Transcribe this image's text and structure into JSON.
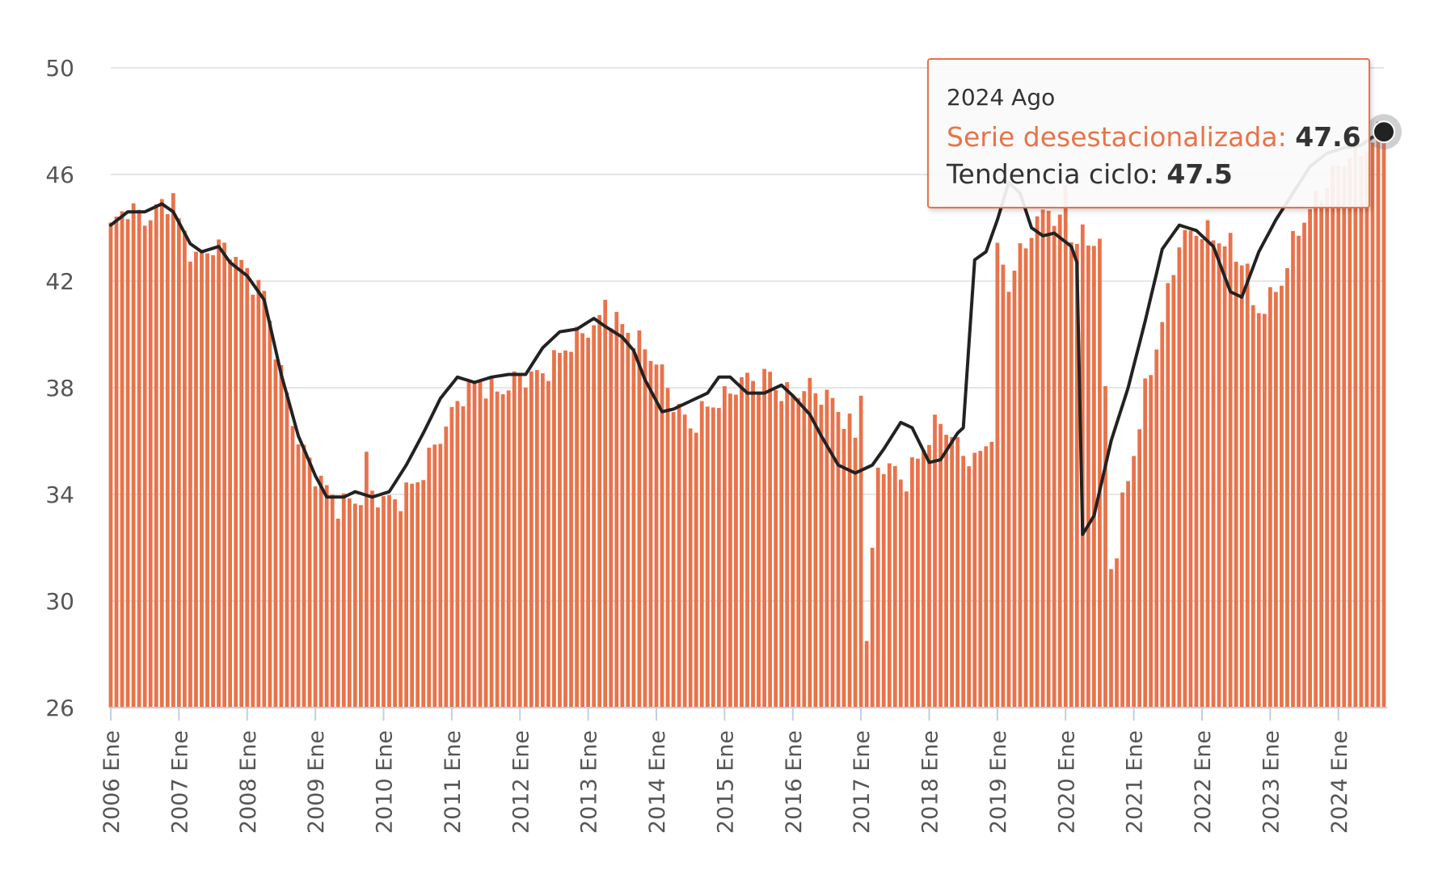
{
  "chart_data": {
    "type": "bar",
    "title": "",
    "xlabel": "",
    "ylabel": "",
    "ylim": [
      26,
      50
    ],
    "yticks": [
      "50",
      "46",
      "42",
      "38",
      "34",
      "30",
      "26"
    ],
    "x_tick_labels": [
      "2006 Ene",
      "2007 Ene",
      "2008 Ene",
      "2009 Ene",
      "2010 Ene",
      "2011 Ene",
      "2012 Ene",
      "2013 Ene",
      "2014 Ene",
      "2015 Ene",
      "2016 Ene",
      "2017 Ene",
      "2018 Ene",
      "2019 Ene",
      "2020 Ene",
      "2021 Ene",
      "2022 Ene",
      "2023 Ene",
      "2024 Ene"
    ],
    "start": "2006-01",
    "end": "2024-08",
    "series": [
      {
        "name": "Serie desestacionalizada",
        "kind": "bar",
        "color": "#e8734a",
        "anchors": [
          [
            0,
            44.0
          ],
          [
            3,
            44.8
          ],
          [
            6,
            44.3
          ],
          [
            10,
            45.0
          ],
          [
            12,
            44.2
          ],
          [
            15,
            42.8
          ],
          [
            18,
            43.3
          ],
          [
            21,
            43.2
          ],
          [
            24,
            42.3
          ],
          [
            27,
            41.5
          ],
          [
            30,
            38.5
          ],
          [
            33,
            36.0
          ],
          [
            36,
            34.8
          ],
          [
            40,
            33.6
          ],
          [
            43,
            33.8
          ],
          [
            46,
            34.0
          ],
          [
            50,
            33.7
          ],
          [
            54,
            34.5
          ],
          [
            58,
            36.2
          ],
          [
            62,
            37.8
          ],
          [
            65,
            38.2
          ],
          [
            68,
            37.8
          ],
          [
            72,
            38.4
          ],
          [
            76,
            38.5
          ],
          [
            80,
            39.5
          ],
          [
            84,
            40.2
          ],
          [
            88,
            40.7
          ],
          [
            92,
            39.9
          ],
          [
            96,
            39.0
          ],
          [
            99,
            37.5
          ],
          [
            102,
            36.5
          ],
          [
            105,
            37.3
          ],
          [
            108,
            37.6
          ],
          [
            111,
            38.3
          ],
          [
            115,
            38.3
          ],
          [
            119,
            37.7
          ],
          [
            123,
            38.0
          ],
          [
            127,
            37.5
          ],
          [
            131,
            36.2
          ],
          [
            134,
            35.2
          ],
          [
            137,
            35.0
          ],
          [
            140,
            34.5
          ],
          [
            143,
            35.8
          ],
          [
            146,
            36.8
          ],
          [
            149,
            35.8
          ],
          [
            152,
            35.2
          ],
          [
            155,
            36.3
          ],
          [
            156,
            42.9
          ],
          [
            159,
            42.5
          ],
          [
            162,
            43.9
          ],
          [
            165,
            44.8
          ],
          [
            168,
            43.6
          ],
          [
            171,
            43.6
          ],
          [
            174,
            43.5
          ],
          [
            176,
            32.0
          ],
          [
            179,
            34.5
          ],
          [
            182,
            37.8
          ],
          [
            185,
            40.5
          ],
          [
            188,
            43.5
          ],
          [
            191,
            43.9
          ],
          [
            194,
            43.7
          ],
          [
            197,
            43.3
          ],
          [
            200,
            42.5
          ],
          [
            203,
            41.0
          ],
          [
            206,
            42.0
          ],
          [
            209,
            44.0
          ],
          [
            212,
            45.0
          ],
          [
            215,
            46.0
          ],
          [
            218,
            46.8
          ],
          [
            221,
            47.0
          ],
          [
            224,
            47.4
          ],
          [
            223,
            47.5
          ],
          [
            224,
            47.6
          ]
        ],
        "overrides": [
          [
            11,
            45.3
          ],
          [
            45,
            35.6
          ],
          [
            87,
            41.3
          ],
          [
            116,
            38.6
          ],
          [
            132,
            37.7
          ],
          [
            132,
            37.7
          ],
          [
            133,
            28.5
          ],
          [
            134,
            32.0
          ],
          [
            158,
            41.6
          ],
          [
            168,
            45.6
          ],
          [
            176,
            31.2
          ],
          [
            177,
            31.6
          ],
          [
            201,
            41.1
          ],
          [
            202,
            40.8
          ],
          [
            224,
            47.6
          ]
        ]
      },
      {
        "name": "Tendencia ciclo",
        "kind": "line",
        "color": "#222222",
        "anchors": [
          [
            0,
            44.1
          ],
          [
            3,
            44.6
          ],
          [
            6,
            44.6
          ],
          [
            9,
            44.9
          ],
          [
            11,
            44.6
          ],
          [
            14,
            43.4
          ],
          [
            16,
            43.1
          ],
          [
            19,
            43.3
          ],
          [
            21,
            42.7
          ],
          [
            24,
            42.2
          ],
          [
            27,
            41.3
          ],
          [
            30,
            38.5
          ],
          [
            33,
            36.2
          ],
          [
            36,
            34.7
          ],
          [
            38,
            33.9
          ],
          [
            41,
            33.9
          ],
          [
            43,
            34.1
          ],
          [
            46,
            33.9
          ],
          [
            49,
            34.1
          ],
          [
            52,
            35.1
          ],
          [
            55,
            36.3
          ],
          [
            58,
            37.6
          ],
          [
            61,
            38.4
          ],
          [
            64,
            38.2
          ],
          [
            67,
            38.4
          ],
          [
            70,
            38.5
          ],
          [
            73,
            38.5
          ],
          [
            76,
            39.5
          ],
          [
            79,
            40.1
          ],
          [
            82,
            40.2
          ],
          [
            85,
            40.6
          ],
          [
            87,
            40.3
          ],
          [
            90,
            39.9
          ],
          [
            92,
            39.4
          ],
          [
            94,
            38.3
          ],
          [
            97,
            37.1
          ],
          [
            99,
            37.2
          ],
          [
            102,
            37.5
          ],
          [
            105,
            37.8
          ],
          [
            107,
            38.4
          ],
          [
            109,
            38.4
          ],
          [
            112,
            37.8
          ],
          [
            115,
            37.8
          ],
          [
            118,
            38.1
          ],
          [
            120,
            37.7
          ],
          [
            123,
            37.0
          ],
          [
            125,
            36.2
          ],
          [
            128,
            35.1
          ],
          [
            131,
            34.8
          ],
          [
            134,
            35.1
          ],
          [
            136,
            35.7
          ],
          [
            139,
            36.7
          ],
          [
            141,
            36.5
          ],
          [
            144,
            35.2
          ],
          [
            146,
            35.3
          ],
          [
            149,
            36.3
          ],
          [
            150,
            36.5
          ],
          [
            152,
            42.8
          ],
          [
            154,
            43.1
          ],
          [
            156,
            44.3
          ],
          [
            158,
            45.7
          ],
          [
            160,
            45.3
          ],
          [
            162,
            44.0
          ],
          [
            164,
            43.7
          ],
          [
            166,
            43.8
          ],
          [
            169,
            43.3
          ],
          [
            170,
            42.7
          ],
          [
            171,
            32.5
          ],
          [
            173,
            33.2
          ],
          [
            176,
            36.0
          ],
          [
            179,
            38.0
          ],
          [
            182,
            40.5
          ],
          [
            185,
            43.2
          ],
          [
            188,
            44.1
          ],
          [
            191,
            43.9
          ],
          [
            194,
            43.3
          ],
          [
            197,
            41.6
          ],
          [
            199,
            41.4
          ],
          [
            202,
            43.1
          ],
          [
            205,
            44.3
          ],
          [
            208,
            45.3
          ],
          [
            211,
            46.3
          ],
          [
            214,
            46.8
          ],
          [
            217,
            47.0
          ],
          [
            220,
            47.1
          ],
          [
            222,
            47.4
          ],
          [
            224,
            47.5
          ]
        ]
      }
    ],
    "tooltip": {
      "date": "2024 Ago",
      "series_label": "Serie desestacionalizada:",
      "series_value": "47.6",
      "trend_label": "Tendencia ciclo:",
      "trend_value": "47.5"
    }
  }
}
